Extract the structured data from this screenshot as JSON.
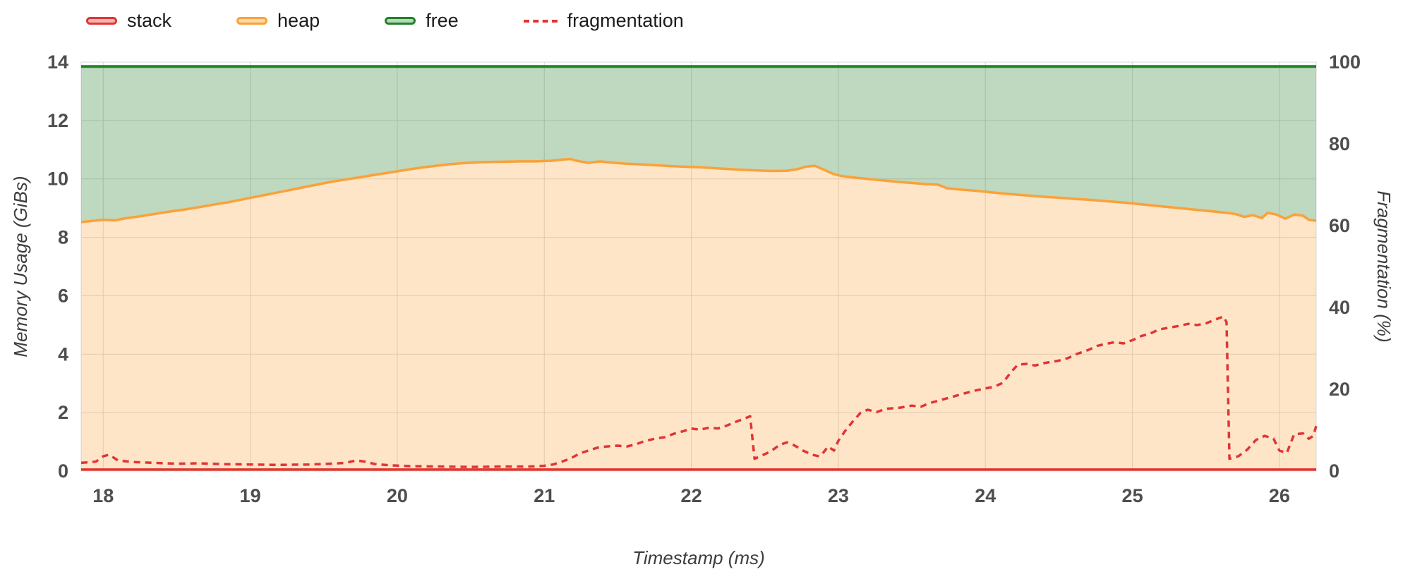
{
  "chart_data": {
    "type": "line",
    "title": "",
    "xlabel": "Timestamp (ms)",
    "ylabel_left": "Memory Usage (GiBs)",
    "ylabel_right": "Fragmentation (%)",
    "x_range": [
      17.85,
      26.25
    ],
    "x_ticks": [
      18,
      19,
      20,
      21,
      22,
      23,
      24,
      25,
      26
    ],
    "y_left_range": [
      0,
      14
    ],
    "y_left_ticks": [
      0,
      2,
      4,
      6,
      8,
      10,
      12,
      14
    ],
    "y_right_range": [
      0,
      100
    ],
    "y_right_ticks": [
      0,
      20,
      40,
      60,
      80,
      100
    ],
    "grid": true,
    "grid_color": "#d9d9d9",
    "legend_position": "top-left",
    "series": [
      {
        "name": "stack",
        "axis": "left",
        "style": "line",
        "color": "#e23434",
        "legend_fill": "#f3b6b0",
        "width": 3.5,
        "points": [
          [
            17.85,
            0.05
          ],
          [
            26.25,
            0.05
          ]
        ]
      },
      {
        "name": "heap",
        "axis": "left",
        "style": "area",
        "color": "#fba138",
        "fill": "rgba(251,161,56,0.28)",
        "legend_fill": "#fcd9a6",
        "width": 3.5,
        "points": [
          [
            17.85,
            8.52
          ],
          [
            17.92,
            8.56
          ],
          [
            18.0,
            8.6
          ],
          [
            18.08,
            8.58
          ],
          [
            18.15,
            8.65
          ],
          [
            18.25,
            8.72
          ],
          [
            18.35,
            8.8
          ],
          [
            18.45,
            8.88
          ],
          [
            18.55,
            8.95
          ],
          [
            18.65,
            9.03
          ],
          [
            18.75,
            9.12
          ],
          [
            18.85,
            9.2
          ],
          [
            18.95,
            9.3
          ],
          [
            19.05,
            9.4
          ],
          [
            19.15,
            9.5
          ],
          [
            19.25,
            9.6
          ],
          [
            19.35,
            9.7
          ],
          [
            19.45,
            9.8
          ],
          [
            19.55,
            9.9
          ],
          [
            19.65,
            9.98
          ],
          [
            19.75,
            10.06
          ],
          [
            19.85,
            10.14
          ],
          [
            19.95,
            10.22
          ],
          [
            20.05,
            10.3
          ],
          [
            20.15,
            10.38
          ],
          [
            20.25,
            10.44
          ],
          [
            20.35,
            10.5
          ],
          [
            20.45,
            10.54
          ],
          [
            20.55,
            10.57
          ],
          [
            20.65,
            10.58
          ],
          [
            20.75,
            10.59
          ],
          [
            20.85,
            10.6
          ],
          [
            20.95,
            10.6
          ],
          [
            21.05,
            10.62
          ],
          [
            21.12,
            10.66
          ],
          [
            21.18,
            10.68
          ],
          [
            21.22,
            10.62
          ],
          [
            21.3,
            10.55
          ],
          [
            21.38,
            10.6
          ],
          [
            21.45,
            10.56
          ],
          [
            21.55,
            10.52
          ],
          [
            21.65,
            10.5
          ],
          [
            21.75,
            10.47
          ],
          [
            21.85,
            10.44
          ],
          [
            21.95,
            10.42
          ],
          [
            22.05,
            10.4
          ],
          [
            22.15,
            10.37
          ],
          [
            22.25,
            10.34
          ],
          [
            22.35,
            10.31
          ],
          [
            22.45,
            10.29
          ],
          [
            22.55,
            10.27
          ],
          [
            22.65,
            10.28
          ],
          [
            22.72,
            10.33
          ],
          [
            22.78,
            10.42
          ],
          [
            22.84,
            10.45
          ],
          [
            22.9,
            10.32
          ],
          [
            22.96,
            10.18
          ],
          [
            23.02,
            10.1
          ],
          [
            23.1,
            10.05
          ],
          [
            23.2,
            10.0
          ],
          [
            23.3,
            9.95
          ],
          [
            23.4,
            9.9
          ],
          [
            23.5,
            9.86
          ],
          [
            23.6,
            9.82
          ],
          [
            23.68,
            9.8
          ],
          [
            23.74,
            9.68
          ],
          [
            23.82,
            9.64
          ],
          [
            23.92,
            9.6
          ],
          [
            24.02,
            9.55
          ],
          [
            24.12,
            9.5
          ],
          [
            24.22,
            9.46
          ],
          [
            24.32,
            9.42
          ],
          [
            24.42,
            9.38
          ],
          [
            24.52,
            9.35
          ],
          [
            24.62,
            9.31
          ],
          [
            24.72,
            9.28
          ],
          [
            24.82,
            9.24
          ],
          [
            24.92,
            9.2
          ],
          [
            25.02,
            9.15
          ],
          [
            25.12,
            9.1
          ],
          [
            25.22,
            9.05
          ],
          [
            25.32,
            9.0
          ],
          [
            25.42,
            8.95
          ],
          [
            25.52,
            8.9
          ],
          [
            25.62,
            8.85
          ],
          [
            25.7,
            8.8
          ],
          [
            25.76,
            8.7
          ],
          [
            25.82,
            8.76
          ],
          [
            25.88,
            8.66
          ],
          [
            25.92,
            8.84
          ],
          [
            25.98,
            8.78
          ],
          [
            26.04,
            8.64
          ],
          [
            26.1,
            8.78
          ],
          [
            26.16,
            8.74
          ],
          [
            26.2,
            8.6
          ],
          [
            26.25,
            8.57
          ]
        ]
      },
      {
        "name": "free",
        "axis": "left",
        "style": "area_between",
        "lower": "heap",
        "color": "#1f8428",
        "fill": "rgba(56,135,60,0.32)",
        "legend_fill": "#b9d7ba",
        "width": 4,
        "points": [
          [
            17.85,
            13.85
          ],
          [
            26.25,
            13.85
          ]
        ]
      },
      {
        "name": "fragmentation",
        "axis": "right",
        "style": "line",
        "dash": "9 7",
        "color": "#e23434",
        "width": 3.5,
        "points": [
          [
            17.85,
            2.0
          ],
          [
            17.95,
            2.3
          ],
          [
            18.0,
            3.6
          ],
          [
            18.04,
            4.0
          ],
          [
            18.1,
            2.6
          ],
          [
            18.2,
            2.2
          ],
          [
            18.35,
            2.0
          ],
          [
            18.5,
            1.8
          ],
          [
            18.65,
            1.9
          ],
          [
            18.8,
            1.7
          ],
          [
            19.0,
            1.6
          ],
          [
            19.2,
            1.5
          ],
          [
            19.4,
            1.6
          ],
          [
            19.55,
            1.8
          ],
          [
            19.65,
            2.0
          ],
          [
            19.72,
            2.6
          ],
          [
            19.78,
            2.3
          ],
          [
            19.85,
            1.7
          ],
          [
            19.95,
            1.4
          ],
          [
            20.1,
            1.2
          ],
          [
            20.3,
            1.1
          ],
          [
            20.5,
            1.0
          ],
          [
            20.7,
            1.1
          ],
          [
            20.9,
            1.1
          ],
          [
            21.0,
            1.3
          ],
          [
            21.06,
            1.6
          ],
          [
            21.12,
            2.3
          ],
          [
            21.18,
            3.1
          ],
          [
            21.24,
            4.3
          ],
          [
            21.3,
            5.0
          ],
          [
            21.36,
            5.7
          ],
          [
            21.42,
            6.0
          ],
          [
            21.5,
            6.2
          ],
          [
            21.56,
            6.0
          ],
          [
            21.62,
            6.5
          ],
          [
            21.68,
            7.3
          ],
          [
            21.75,
            7.9
          ],
          [
            21.82,
            8.3
          ],
          [
            21.88,
            9.1
          ],
          [
            21.95,
            9.8
          ],
          [
            22.0,
            10.4
          ],
          [
            22.06,
            10.1
          ],
          [
            22.12,
            10.6
          ],
          [
            22.18,
            10.4
          ],
          [
            22.24,
            11.1
          ],
          [
            22.3,
            12.0
          ],
          [
            22.36,
            12.8
          ],
          [
            22.4,
            13.4
          ],
          [
            22.43,
            3.0
          ],
          [
            22.48,
            3.8
          ],
          [
            22.54,
            4.8
          ],
          [
            22.6,
            6.4
          ],
          [
            22.65,
            7.0
          ],
          [
            22.7,
            6.3
          ],
          [
            22.76,
            5.0
          ],
          [
            22.82,
            4.0
          ],
          [
            22.87,
            3.6
          ],
          [
            22.9,
            4.6
          ],
          [
            22.93,
            6.0
          ],
          [
            22.97,
            5.0
          ],
          [
            23.0,
            7.4
          ],
          [
            23.05,
            10.0
          ],
          [
            23.1,
            12.2
          ],
          [
            23.15,
            14.2
          ],
          [
            23.2,
            15.0
          ],
          [
            23.26,
            14.4
          ],
          [
            23.32,
            15.2
          ],
          [
            23.42,
            15.5
          ],
          [
            23.5,
            16.0
          ],
          [
            23.56,
            15.7
          ],
          [
            23.62,
            16.6
          ],
          [
            23.72,
            17.6
          ],
          [
            23.82,
            18.6
          ],
          [
            23.92,
            19.6
          ],
          [
            24.0,
            20.2
          ],
          [
            24.06,
            20.6
          ],
          [
            24.12,
            21.6
          ],
          [
            24.17,
            24.0
          ],
          [
            24.22,
            26.0
          ],
          [
            24.28,
            26.2
          ],
          [
            24.34,
            25.8
          ],
          [
            24.4,
            26.4
          ],
          [
            24.5,
            27.0
          ],
          [
            24.56,
            27.6
          ],
          [
            24.62,
            28.6
          ],
          [
            24.7,
            29.6
          ],
          [
            24.76,
            30.6
          ],
          [
            24.82,
            31.1
          ],
          [
            24.88,
            31.5
          ],
          [
            24.94,
            31.2
          ],
          [
            25.0,
            32.0
          ],
          [
            25.06,
            33.0
          ],
          [
            25.12,
            33.6
          ],
          [
            25.18,
            34.6
          ],
          [
            25.24,
            35.0
          ],
          [
            25.32,
            35.5
          ],
          [
            25.38,
            36.0
          ],
          [
            25.44,
            35.7
          ],
          [
            25.5,
            36.1
          ],
          [
            25.56,
            37.0
          ],
          [
            25.62,
            37.8
          ],
          [
            25.64,
            36.4
          ],
          [
            25.66,
            3.0
          ],
          [
            25.72,
            3.6
          ],
          [
            25.78,
            5.2
          ],
          [
            25.84,
            7.6
          ],
          [
            25.9,
            8.6
          ],
          [
            25.96,
            7.9
          ],
          [
            26.0,
            5.0
          ],
          [
            26.05,
            4.4
          ],
          [
            26.1,
            9.0
          ],
          [
            26.16,
            9.2
          ],
          [
            26.2,
            7.9
          ],
          [
            26.23,
            8.6
          ],
          [
            26.25,
            11.0
          ]
        ]
      }
    ]
  }
}
